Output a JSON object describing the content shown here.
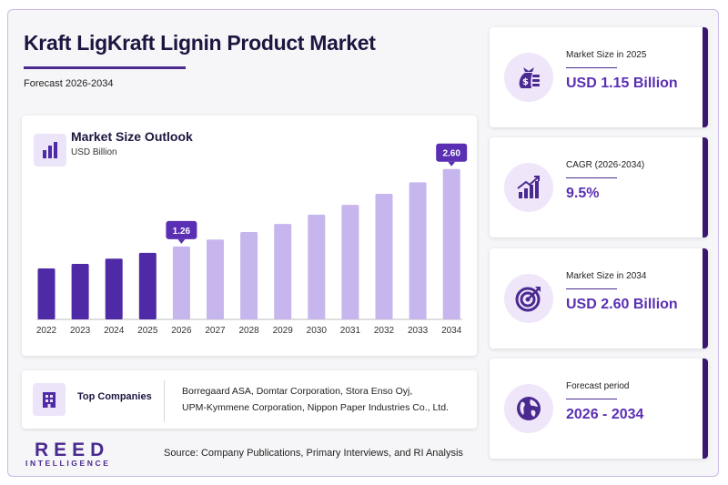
{
  "header": {
    "title": "Kraft LigKraft Lignin Product Market",
    "subtitle": "Forecast 2026-2034"
  },
  "chart_card": {
    "title": "Market Size Outlook",
    "unit": "USD Billion",
    "icon": "bar-chart-icon"
  },
  "chart_data": {
    "type": "bar",
    "title": "Market Size Outlook",
    "ylabel": "USD Billion",
    "categories": [
      "2022",
      "2023",
      "2024",
      "2025",
      "2026",
      "2027",
      "2028",
      "2029",
      "2030",
      "2031",
      "2032",
      "2033",
      "2034"
    ],
    "values": [
      0.88,
      0.96,
      1.05,
      1.15,
      1.26,
      1.38,
      1.51,
      1.65,
      1.81,
      1.98,
      2.17,
      2.37,
      2.6
    ],
    "data_labels": [
      {
        "category": "2026",
        "label": "1.26"
      },
      {
        "category": "2034",
        "label": "2.60"
      }
    ],
    "ylim": [
      0,
      2.8
    ],
    "historical_color": "#4f2aa6",
    "forecast_color": "#c7b6ee",
    "label_color": "#5a2fb3",
    "grid": false,
    "legend": "none"
  },
  "companies": {
    "label": "Top Companies",
    "icon": "building-icon",
    "line1": "Borregaard ASA, Domtar Corporation, Stora Enso Oyj,",
    "line2": "UPM-Kymmene Corporation, Nippon Paper Industries Co., Ltd."
  },
  "branding": {
    "logo_main": "REED",
    "logo_sub": "INTELLIGENCE"
  },
  "source": "Source: Company Publications, Primary Interviews, and RI Analysis",
  "stats": [
    {
      "label": "Market Size in 2025",
      "value": "USD 1.15 Billion",
      "icon": "money-bag-icon"
    },
    {
      "label": "CAGR (2026-2034)",
      "value": "9.5%",
      "icon": "growth-chart-icon"
    },
    {
      "label": "Market Size in 2034",
      "value": "USD 2.60 Billion",
      "icon": "target-icon"
    },
    {
      "label": "Forecast period",
      "value": "2026 - 2034",
      "icon": "globe-icon"
    }
  ],
  "colors": {
    "accent": "#5a2fb3",
    "dark": "#1d1640",
    "card_edge": "#3a1670",
    "icon_bg": "#efe6fa"
  }
}
